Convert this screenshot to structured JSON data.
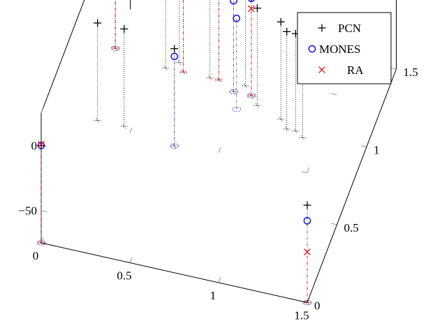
{
  "chart_data": {
    "type": "scatter",
    "subtype": "3d-stem",
    "title": "",
    "xlabel": "",
    "ylabel": "",
    "zlabel": "",
    "xlim": [
      0,
      1.5
    ],
    "ylim": [
      0,
      1.5
    ],
    "zlim": [
      -75,
      25
    ],
    "x_ticks": [
      0,
      0.5,
      1,
      1.5
    ],
    "y_ticks": [
      0,
      0.5,
      1,
      1.5
    ],
    "z_ticks": [
      -50,
      0
    ],
    "x_tick_labels": [
      "0",
      "0.5",
      "1",
      "1.5"
    ],
    "y_tick_labels": [
      "0",
      "0.5",
      "1",
      "1.5"
    ],
    "z_tick_labels": [
      "−50",
      "0"
    ],
    "grid": false,
    "legend_position": "top-right",
    "series": [
      {
        "name": "PCN",
        "marker": "plus",
        "color": "#000000",
        "stem_color": "#000000",
        "points": [
          {
            "x": 0.0,
            "y": 0.0,
            "z": 0
          },
          {
            "x": 0.0,
            "y": 1.25,
            "z": 20
          },
          {
            "x": 0.05,
            "y": 0.8,
            "z": 0
          },
          {
            "x": 0.3,
            "y": 1.2,
            "z": 0
          },
          {
            "x": 0.36,
            "y": 1.25,
            "z": 0
          },
          {
            "x": 0.4,
            "y": 1.2,
            "z": 0
          },
          {
            "x": 0.2,
            "y": 0.8,
            "z": 0
          },
          {
            "x": 0.5,
            "y": 0.75,
            "z": 0
          },
          {
            "x": 0.55,
            "y": 1.2,
            "z": 0
          },
          {
            "x": 0.6,
            "y": 1.2,
            "z": 0
          },
          {
            "x": 0.7,
            "y": 1.15,
            "z": 0
          },
          {
            "x": 0.75,
            "y": 1.2,
            "z": 0
          },
          {
            "x": 0.8,
            "y": 1.15,
            "z": 0
          },
          {
            "x": 0.85,
            "y": 1.1,
            "z": 0
          },
          {
            "x": 1.0,
            "y": 1.05,
            "z": 0
          },
          {
            "x": 1.05,
            "y": 1.0,
            "z": 0
          },
          {
            "x": 1.1,
            "y": 1.0,
            "z": 0
          },
          {
            "x": 1.15,
            "y": 0.97,
            "z": 0
          },
          {
            "x": 1.5,
            "y": 0.0,
            "z": 0
          }
        ]
      },
      {
        "name": "MONES",
        "marker": "circle",
        "color": "#0000dd",
        "stem_color": "#7a4fb0",
        "points": [
          {
            "x": 0.0,
            "y": 0.0,
            "z": 0
          },
          {
            "x": 0.0,
            "y": 1.25,
            "z": 0
          },
          {
            "x": 0.5,
            "y": 0.75,
            "z": -6
          },
          {
            "x": 0.7,
            "y": 1.15,
            "z": -5
          },
          {
            "x": 0.75,
            "y": 1.05,
            "z": -5
          },
          {
            "x": 0.8,
            "y": 1.15,
            "z": 0
          },
          {
            "x": 1.5,
            "y": 0.0,
            "z": -12
          }
        ]
      },
      {
        "name": "RA",
        "marker": "x",
        "color": "#ee1111",
        "stem_color": "#cc2222",
        "points": [
          {
            "x": 0.0,
            "y": 0.0,
            "z": 1
          },
          {
            "x": 0.0,
            "y": 1.25,
            "z": 15
          },
          {
            "x": 0.4,
            "y": 1.2,
            "z": -8
          },
          {
            "x": 0.6,
            "y": 1.2,
            "z": -3
          },
          {
            "x": 0.8,
            "y": 1.15,
            "z": -8
          },
          {
            "x": 1.5,
            "y": 0.0,
            "z": -36
          }
        ]
      }
    ]
  }
}
